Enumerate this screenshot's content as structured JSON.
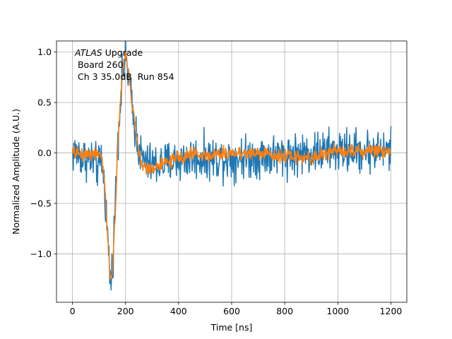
{
  "chart_data": {
    "type": "line",
    "title": "",
    "xlabel": "Time [ns]",
    "ylabel": "Normalized Amplitude (A.U.)",
    "xlim": [
      -60,
      1260
    ],
    "ylim": [
      -1.48,
      1.11
    ],
    "xticks": [
      0,
      200,
      400,
      600,
      800,
      1000,
      1200
    ],
    "yticks": [
      -1.0,
      -0.5,
      0.0,
      0.5,
      1.0
    ],
    "xtick_labels": [
      "0",
      "200",
      "400",
      "600",
      "800",
      "1000",
      "1200"
    ],
    "ytick_labels": [
      "−1.0",
      "−0.5",
      "0.0",
      "0.5",
      "1.0"
    ],
    "grid": true,
    "annotation": {
      "line1_italic": "ATLAS",
      "line1_rest": " Upgrade",
      "line2": " Board 260",
      "line3": " Ch 3 35.0dB  Run 854"
    },
    "series": [
      {
        "color": "#1f77b4",
        "noise_amplitude": 0.16,
        "x": [
          0,
          20,
          40,
          60,
          80,
          100,
          110,
          120,
          130,
          140,
          145,
          150,
          160,
          170,
          180,
          190,
          200,
          210,
          220,
          230,
          240,
          250,
          260,
          280,
          300,
          350,
          400,
          450,
          500,
          600,
          700,
          800,
          900,
          1000,
          1100,
          1200
        ],
        "values": [
          0.0,
          0.0,
          -0.05,
          -0.05,
          -0.1,
          -0.15,
          -0.05,
          -0.3,
          -0.7,
          -1.15,
          -1.28,
          -1.15,
          -0.6,
          0.1,
          0.5,
          0.82,
          0.95,
          0.8,
          0.55,
          0.35,
          0.2,
          0.05,
          -0.05,
          -0.1,
          -0.12,
          -0.1,
          -0.07,
          -0.05,
          -0.05,
          -0.05,
          -0.03,
          -0.02,
          0.0,
          0.02,
          0.02,
          0.02
        ]
      },
      {
        "color": "#ff7f0e",
        "noise_amplitude": 0.05,
        "x": [
          0,
          20,
          40,
          60,
          80,
          100,
          110,
          120,
          130,
          140,
          145,
          150,
          160,
          170,
          180,
          190,
          200,
          210,
          220,
          230,
          240,
          250,
          260,
          270,
          280,
          300,
          320,
          350,
          400,
          450,
          500,
          600,
          700,
          800,
          900,
          1000,
          1100,
          1200
        ],
        "values": [
          0.0,
          0.0,
          -0.02,
          0.0,
          0.0,
          -0.03,
          -0.05,
          -0.25,
          -0.7,
          -1.15,
          -1.25,
          -1.2,
          -0.7,
          0.0,
          0.5,
          0.85,
          0.97,
          0.85,
          0.6,
          0.4,
          0.2,
          0.0,
          -0.1,
          -0.15,
          -0.15,
          -0.15,
          -0.13,
          -0.1,
          -0.05,
          0.0,
          -0.03,
          0.0,
          0.0,
          -0.03,
          -0.05,
          0.03,
          0.02,
          0.02
        ]
      }
    ]
  }
}
